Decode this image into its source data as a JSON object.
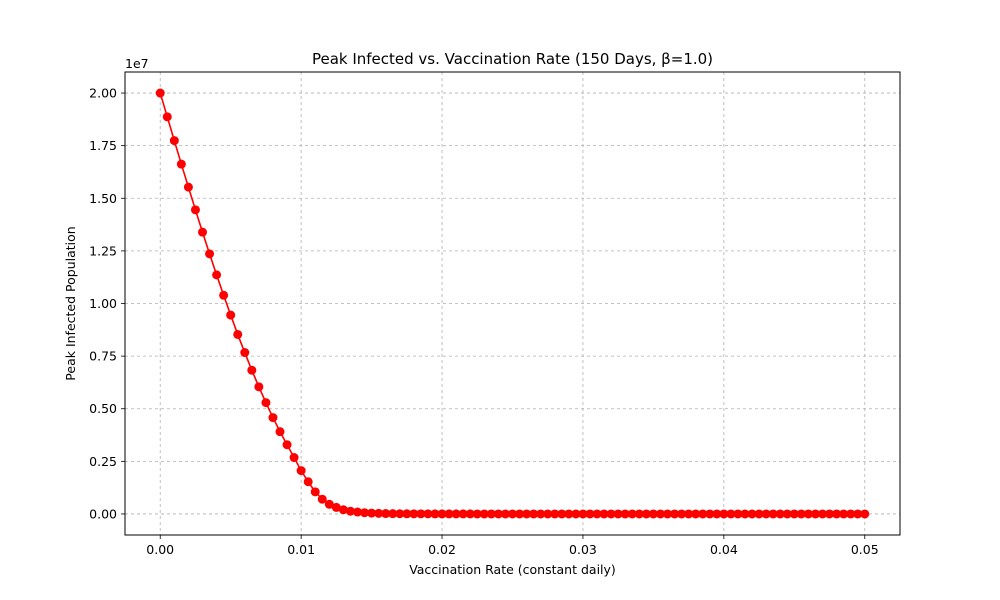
{
  "chart_data": {
    "type": "line",
    "title": "Peak Infected vs. Vaccination Rate (150 Days, β=1.0)",
    "xlabel": "Vaccination Rate (constant daily)",
    "ylabel": "Peak Infected Population",
    "y_offset_label": "1e7",
    "xlim": [
      -0.0025,
      0.0525
    ],
    "ylim": [
      -1000000,
      21000000
    ],
    "x_ticks": [
      0.0,
      0.01,
      0.02,
      0.03,
      0.04,
      0.05
    ],
    "x_tick_labels": [
      "0.00",
      "0.01",
      "0.02",
      "0.03",
      "0.04",
      "0.05"
    ],
    "y_ticks": [
      0,
      2500000,
      5000000,
      7500000,
      10000000,
      12500000,
      15000000,
      17500000,
      20000000
    ],
    "y_tick_labels": [
      "0.00",
      "0.25",
      "0.50",
      "0.75",
      "1.00",
      "1.25",
      "1.50",
      "1.75",
      "2.00"
    ],
    "grid": true,
    "grid_style": "dashed",
    "color": "#ff0000",
    "series": [
      {
        "x": [
          0.0,
          0.0005,
          0.001,
          0.0015,
          0.002,
          0.0025,
          0.003,
          0.0035,
          0.004,
          0.0045,
          0.005,
          0.0055,
          0.006,
          0.0065,
          0.007,
          0.0075,
          0.008,
          0.0085,
          0.009,
          0.0095,
          0.01,
          0.0105,
          0.011,
          0.0115,
          0.012,
          0.0125,
          0.013,
          0.0135,
          0.014,
          0.0145,
          0.015,
          0.0155,
          0.016,
          0.0165,
          0.017,
          0.0175,
          0.018,
          0.0185,
          0.019,
          0.0195,
          0.02,
          0.0205,
          0.021,
          0.0215,
          0.022,
          0.0225,
          0.023,
          0.0235,
          0.024,
          0.0245,
          0.025,
          0.0255,
          0.026,
          0.0265,
          0.027,
          0.0275,
          0.028,
          0.0285,
          0.029,
          0.0295,
          0.03,
          0.0305,
          0.031,
          0.0315,
          0.032,
          0.0325,
          0.033,
          0.0335,
          0.034,
          0.0345,
          0.035,
          0.0355,
          0.036,
          0.0365,
          0.037,
          0.0375,
          0.038,
          0.0385,
          0.039,
          0.0395,
          0.04,
          0.0405,
          0.041,
          0.0415,
          0.042,
          0.0425,
          0.043,
          0.0435,
          0.044,
          0.0445,
          0.045,
          0.0455,
          0.046,
          0.0465,
          0.047,
          0.0475,
          0.048,
          0.0485,
          0.049,
          0.0495,
          0.05
        ],
        "y": [
          20000000,
          18870000,
          17740000,
          16620000,
          15530000,
          14450000,
          13390000,
          12360000,
          11360000,
          10390000,
          9450000,
          8530000,
          7670000,
          6830000,
          6040000,
          5290000,
          4580000,
          3910000,
          3290000,
          2680000,
          2060000,
          1530000,
          1050000,
          700000,
          460000,
          310000,
          200000,
          130000,
          90000,
          60000,
          40000,
          30000,
          20000,
          15000,
          10000,
          8000,
          6000,
          5000,
          4000,
          3000,
          2500,
          2000,
          1500,
          1200,
          1000,
          800,
          700,
          600,
          500,
          400,
          350,
          300,
          250,
          200,
          180,
          160,
          140,
          120,
          100,
          90,
          80,
          70,
          60,
          50,
          45,
          40,
          35,
          30,
          28,
          26,
          24,
          22,
          20,
          18,
          16,
          15,
          14,
          13,
          12,
          11,
          10,
          9,
          8,
          7,
          6,
          5,
          5,
          4,
          4,
          3,
          3,
          3,
          2,
          2,
          2,
          1,
          1,
          1,
          1,
          1,
          1
        ]
      }
    ]
  }
}
